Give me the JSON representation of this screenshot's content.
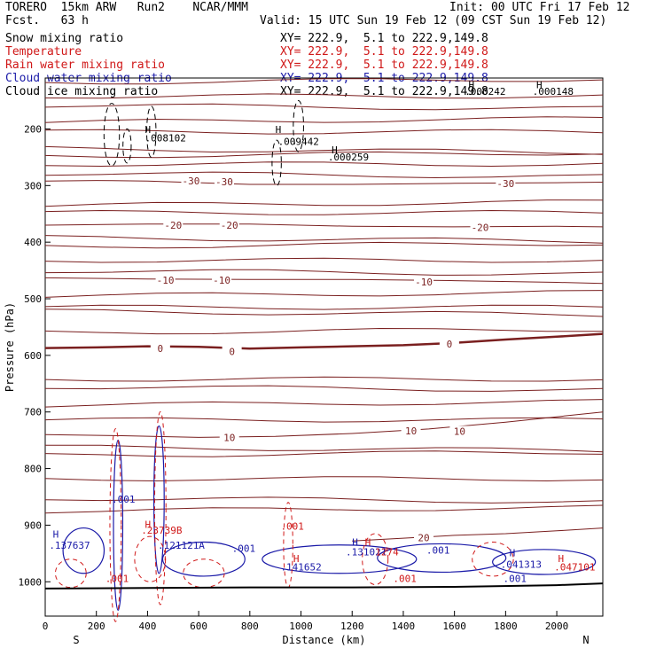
{
  "header": {
    "title_line": "TORERO  15km ARW   Run2    NCAR/MMM",
    "init": "Init: 00 UTC Fri 17 Feb 12",
    "fcst": "Fcst.   63 h",
    "valid": "Valid: 15 UTC Sun 19 Feb 12 (09 CST Sun 19 Feb 12)"
  },
  "legend": [
    {
      "label": "Snow mixing ratio",
      "xy": "",
      "color": "#000000"
    },
    {
      "label": "Temperature",
      "xy": "XY= 222.9,  5.1 to 222.9,149.8",
      "color": "#d01818"
    },
    {
      "label": "Rain water mixing ratio",
      "xy": "XY= 222.9,  5.1 to 222.9,149.8",
      "color": "#d01818"
    },
    {
      "label": "Cloud water mixing ratio",
      "xy": "XY= 222.9,  5.1 to 222.9,149.8",
      "color": "#1a1aa8"
    },
    {
      "label": "Cloud ice mixing ratio",
      "xy": "XY= 222.9,  5.1 to 222.9,149.8",
      "color": "#000000"
    }
  ],
  "snow_xy": "XY= 222.9,  5.1 to 222.9,149.8",
  "chart_data": {
    "type": "cross-section",
    "xlabel": "Distance (km)",
    "ylabel": "Pressure (hPa)",
    "xlim": [
      0,
      2180
    ],
    "ylim": [
      1050,
      110
    ],
    "xticks": [
      "0",
      "200",
      "400",
      "600",
      "800",
      "1000",
      "1200",
      "1400",
      "1600",
      "1800",
      "2000"
    ],
    "yticks": [
      "200",
      "300",
      "400",
      "500",
      "600",
      "700",
      "800",
      "900",
      "1000"
    ],
    "left_end": "S",
    "right_end": "N",
    "temperature_contours": [
      {
        "value": 0,
        "label": "0",
        "bold": true,
        "points": [
          [
            0,
            587
          ],
          [
            200,
            586
          ],
          [
            400,
            584
          ],
          [
            600,
            585
          ],
          [
            800,
            588
          ],
          [
            1000,
            586
          ],
          [
            1200,
            584
          ],
          [
            1400,
            582
          ],
          [
            1600,
            578
          ],
          [
            1800,
            572
          ],
          [
            2000,
            567
          ],
          [
            2180,
            562
          ]
        ],
        "labels": [
          [
            450,
            588
          ],
          [
            730,
            593
          ],
          [
            1580,
            580
          ]
        ]
      },
      {
        "value": -10,
        "label": "-10",
        "points": [
          [
            0,
            463
          ],
          [
            400,
            465
          ],
          [
            800,
            466
          ],
          [
            1200,
            466
          ],
          [
            1600,
            468
          ],
          [
            2000,
            471
          ],
          [
            2180,
            473
          ]
        ],
        "labels": [
          [
            470,
            467
          ],
          [
            690,
            467
          ],
          [
            1480,
            470
          ]
        ]
      },
      {
        "value": -20,
        "label": "-20",
        "points": [
          [
            0,
            370
          ],
          [
            400,
            368
          ],
          [
            800,
            368
          ],
          [
            1200,
            372
          ],
          [
            1600,
            373
          ],
          [
            2000,
            372
          ],
          [
            2180,
            373
          ]
        ],
        "labels": [
          [
            500,
            370
          ],
          [
            720,
            370
          ],
          [
            1700,
            374
          ]
        ]
      },
      {
        "value": -30,
        "label": "-30",
        "points": [
          [
            0,
            292
          ],
          [
            200,
            291
          ],
          [
            400,
            292
          ],
          [
            800,
            298
          ],
          [
            1200,
            298
          ],
          [
            1600,
            296
          ],
          [
            2000,
            295
          ],
          [
            2180,
            294
          ]
        ],
        "labels": [
          [
            570,
            292
          ],
          [
            700,
            293
          ],
          [
            1800,
            296
          ]
        ]
      },
      {
        "value": 10,
        "label": "10",
        "points": [
          [
            0,
            740
          ],
          [
            300,
            742
          ],
          [
            600,
            745
          ],
          [
            900,
            743
          ],
          [
            1200,
            738
          ],
          [
            1500,
            730
          ],
          [
            1800,
            718
          ],
          [
            2180,
            700
          ]
        ],
        "labels": [
          [
            720,
            745
          ],
          [
            1430,
            733
          ],
          [
            1620,
            734
          ]
        ]
      },
      {
        "value": 20,
        "label": "20",
        "points": [
          [
            1200,
            928
          ],
          [
            1400,
            923
          ],
          [
            1600,
            918
          ],
          [
            1800,
            915
          ],
          [
            2000,
            910
          ],
          [
            2180,
            905
          ]
        ],
        "labels": [
          [
            1480,
            922
          ]
        ]
      }
    ],
    "isotherms_unlabeled": [
      118,
      142,
      158,
      188,
      205,
      235,
      248,
      262,
      278,
      335,
      348,
      392,
      408,
      432,
      450,
      495,
      515,
      522,
      560,
      642,
      655,
      688,
      714,
      762,
      777,
      818,
      852,
      875
    ],
    "maxima": [
      {
        "label": ".008102",
        "x": 390,
        "p": 222,
        "color": "#000000"
      },
      {
        "label": ".009442",
        "x": 910,
        "p": 228,
        "color": "#000000"
      },
      {
        "label": ".000259",
        "x": 1105,
        "p": 256,
        "color": "#000000"
      },
      {
        "label": ".000242",
        "x": 1640,
        "p": 140,
        "color": "#000000"
      },
      {
        "label": ".000148",
        "x": 1905,
        "p": 140,
        "color": "#000000"
      },
      {
        "label": ".137637",
        "x": 15,
        "p": 942,
        "color": "#1a1aa8"
      },
      {
        "label": ".23739B",
        "x": 375,
        "p": 915,
        "color": "#d01818"
      },
      {
        "label": ".121121A",
        "x": 440,
        "p": 942,
        "color": "#1a1aa8"
      },
      {
        "label": ".001",
        "x": 260,
        "p": 860,
        "color": "#1a1aa8"
      },
      {
        "label": ".001",
        "x": 730,
        "p": 947,
        "color": "#1a1aa8"
      },
      {
        "label": ".001",
        "x": 920,
        "p": 908,
        "color": "#d01818"
      },
      {
        "label": ".141652",
        "x": 920,
        "p": 980,
        "color": "#1a1aa8"
      },
      {
        "label": ".131021",
        "x": 1175,
        "p": 953,
        "color": "#1a1aa8"
      },
      {
        "label": "1274",
        "x": 1290,
        "p": 953,
        "color": "#d01818"
      },
      {
        "label": ".001",
        "x": 1490,
        "p": 950,
        "color": "#1a1aa8"
      },
      {
        "label": ".041313",
        "x": 1780,
        "p": 975,
        "color": "#1a1aa8"
      },
      {
        "label": ".047101",
        "x": 1990,
        "p": 980,
        "color": "#d01818"
      },
      {
        "label": ".001",
        "x": 235,
        "p": 1000,
        "color": "#d01818"
      },
      {
        "label": ".001",
        "x": 1360,
        "p": 1000,
        "color": "#d01818"
      },
      {
        "label": ".001",
        "x": 1790,
        "p": 1000,
        "color": "#1a1aa8"
      }
    ],
    "h_markers": [
      {
        "x": 390,
        "p": 207,
        "color": "#000000"
      },
      {
        "x": 900,
        "p": 207,
        "color": "#000000"
      },
      {
        "x": 1120,
        "p": 243,
        "color": "#000000"
      },
      {
        "x": 1655,
        "p": 128,
        "color": "#000000"
      },
      {
        "x": 1920,
        "p": 128,
        "color": "#000000"
      },
      {
        "x": 30,
        "p": 922,
        "color": "#1a1aa8"
      },
      {
        "x": 390,
        "p": 905,
        "color": "#d01818"
      },
      {
        "x": 1200,
        "p": 936,
        "color": "#1a1aa8"
      },
      {
        "x": 1250,
        "p": 936,
        "color": "#d01818"
      },
      {
        "x": 1815,
        "p": 955,
        "color": "#1a1aa8"
      },
      {
        "x": 2005,
        "p": 965,
        "color": "#d01818"
      },
      {
        "x": 970,
        "p": 965,
        "color": "#d01818"
      }
    ]
  }
}
